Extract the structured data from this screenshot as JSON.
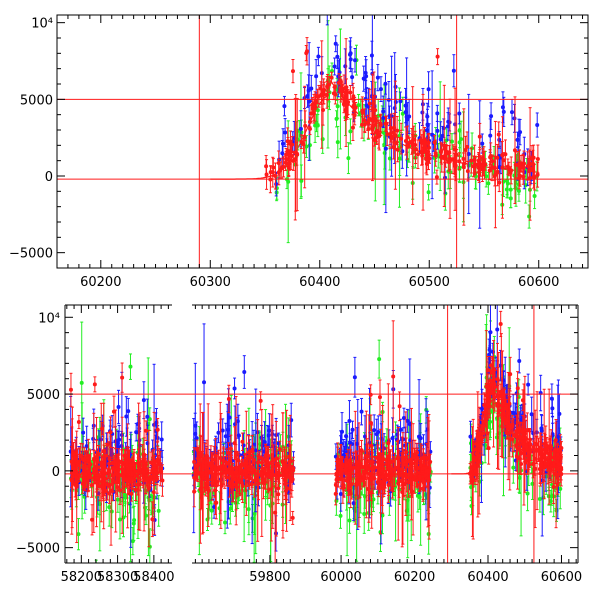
{
  "colors": {
    "blue": "#1a1aff",
    "green": "#22ee22",
    "red": "#ff1a1a",
    "frame": "#000000",
    "background": "#ffffff"
  },
  "chart_data": [
    {
      "type": "scatter",
      "panel": "top",
      "xlim": [
        60160,
        60645
      ],
      "ylim": [
        -6000,
        10500
      ],
      "xticks": [
        60200,
        60300,
        60400,
        60500,
        60600
      ],
      "yticks": [
        -5000,
        0,
        5000,
        10000
      ],
      "ytick_labels": [
        "−5000",
        "0",
        "5000",
        "10⁴"
      ],
      "hlines": [
        5000,
        -200
      ],
      "vlines": [
        60290,
        60525
      ],
      "model_curve": {
        "x0": 60300,
        "x_peak": 60410,
        "x_end": 60600,
        "peak": 5500,
        "baseline": -200
      },
      "series": [
        {
          "color": "red",
          "x_range": [
            60350,
            60600
          ],
          "peak_x": 60410,
          "peak": 5500
        },
        {
          "color": "blue",
          "x_range": [
            60360,
            60600
          ],
          "peak_x": 60410,
          "peak": 6500
        },
        {
          "color": "green",
          "x_range": [
            60360,
            60600
          ],
          "peak_x": 60410,
          "peak": 5200
        }
      ]
    },
    {
      "type": "scatter",
      "panel": "bottom",
      "broken_x_axis": true,
      "ylim": [
        -6000,
        10800
      ],
      "yticks": [
        -5000,
        0,
        5000,
        10000
      ],
      "ytick_labels": [
        "−5000",
        "0",
        "5000",
        "10⁴"
      ],
      "hlines": [
        5000,
        -200
      ],
      "vlines": [
        60290,
        60525
      ],
      "segments": [
        {
          "xlim": [
            58155,
            58450
          ],
          "xticks": [
            58200,
            58300,
            58400
          ],
          "data_x": [
            58170,
            58425
          ]
        },
        {
          "xlim": [
            59570,
            59880
          ],
          "xticks": [
            59800
          ],
          "data_x": [
            59575,
            59870
          ]
        },
        {
          "xlim": [
            59880,
            60645
          ],
          "xticks": [
            60000,
            60200,
            60400,
            60600
          ],
          "data_x": [
            [
              59985,
              60245
            ],
            [
              60350,
              60600
            ]
          ]
        }
      ],
      "flare": {
        "x_peak": 60410,
        "peak": 5500
      },
      "series": [
        {
          "color": "red"
        },
        {
          "color": "blue"
        },
        {
          "color": "green"
        }
      ]
    }
  ]
}
